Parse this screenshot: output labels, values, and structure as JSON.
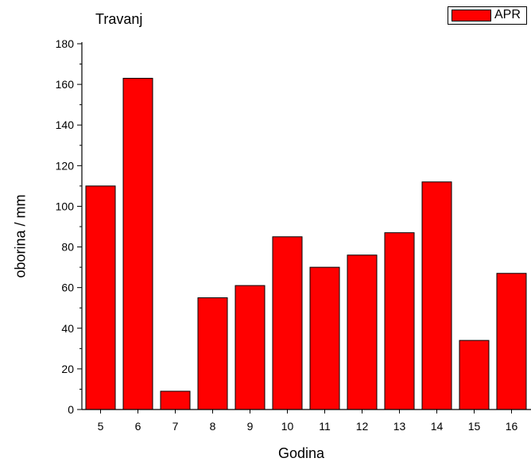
{
  "chart_data": {
    "type": "bar",
    "title": "Travanj",
    "xlabel": "Godina",
    "ylabel": "oborina / mm",
    "ylim": [
      0,
      180
    ],
    "yticks": [
      0,
      20,
      40,
      60,
      80,
      100,
      120,
      140,
      160,
      180
    ],
    "categories": [
      "5",
      "6",
      "7",
      "8",
      "9",
      "10",
      "11",
      "12",
      "13",
      "14",
      "15",
      "16"
    ],
    "series": [
      {
        "name": "APR",
        "color": "#ff0000",
        "values": [
          110,
          163,
          9,
          55,
          61,
          85,
          70,
          76,
          87,
          112,
          34,
          67
        ]
      }
    ],
    "legend_position": "top-right",
    "grid": false
  }
}
